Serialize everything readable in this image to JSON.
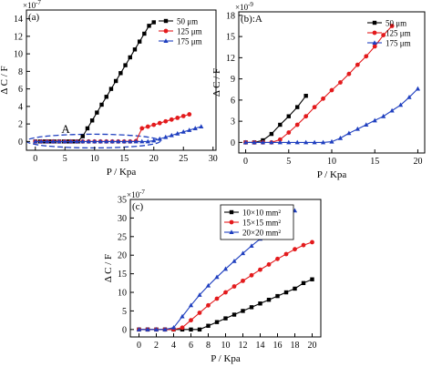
{
  "chart_data": [
    {
      "id": "a",
      "type": "line",
      "panel_label": "(a)",
      "exponent_label": "×10",
      "exponent_sup": "-7",
      "xlabel": "P / Kpa",
      "ylabel": "Δ C / F",
      "xlim": [
        -1.5,
        30.5
      ],
      "ylim": [
        -1,
        15
      ],
      "xticks": [
        0,
        5,
        10,
        15,
        20,
        25,
        30
      ],
      "yticks": [
        0,
        2,
        4,
        6,
        8,
        10,
        12,
        14
      ],
      "grid": false,
      "legend_position": "top-right",
      "annotation": "A",
      "series": [
        {
          "name": "50 μm",
          "color": "#000000",
          "marker": "square",
          "x": [
            0,
            0.8,
            1.6,
            2.4,
            3.2,
            4,
            4.8,
            5.6,
            6.4,
            7.2,
            8,
            8.8,
            9.6,
            10.4,
            11.2,
            12,
            12.8,
            13.6,
            14.4,
            15.2,
            16,
            16.8,
            17.6,
            18.4,
            19.2,
            20
          ],
          "y": [
            0,
            0,
            0,
            0,
            0,
            0,
            0,
            0,
            0,
            0,
            0.6,
            1.5,
            2.4,
            3.3,
            4.2,
            5.1,
            6,
            6.9,
            7.8,
            8.7,
            9.6,
            10.5,
            11.4,
            12.3,
            13.2,
            13.6
          ]
        },
        {
          "name": "125 μm",
          "color": "#e31a1c",
          "marker": "circle",
          "x": [
            0,
            1,
            2,
            3,
            4,
            5,
            6,
            7,
            8,
            9,
            10,
            11,
            12,
            13,
            14,
            15,
            16,
            17,
            18,
            19,
            20,
            21,
            22,
            23,
            24,
            25,
            26
          ],
          "y": [
            0,
            0,
            0,
            0,
            0,
            0,
            0,
            0,
            0,
            0,
            0,
            0,
            0,
            0,
            0,
            0,
            0,
            0.05,
            1.5,
            1.7,
            1.9,
            2.1,
            2.3,
            2.5,
            2.7,
            2.9,
            3.1
          ]
        },
        {
          "name": "175 μm",
          "color": "#1f3fbf",
          "marker": "triangle",
          "x": [
            0,
            1,
            2,
            3,
            4,
            5,
            6,
            7,
            8,
            9,
            10,
            11,
            12,
            13,
            14,
            15,
            16,
            17,
            18,
            19,
            20,
            21,
            22,
            23,
            24,
            25,
            26,
            27,
            28
          ],
          "y": [
            0,
            0,
            0,
            0,
            0,
            0,
            0,
            0,
            0,
            0,
            0,
            0,
            0,
            0,
            0,
            0,
            0,
            0,
            0,
            0,
            0.1,
            0.3,
            0.5,
            0.7,
            0.9,
            1.1,
            1.3,
            1.5,
            1.7
          ]
        }
      ]
    },
    {
      "id": "b",
      "type": "line",
      "panel_label": "(b)",
      "panel_suffix": "A",
      "exponent_label": "×10",
      "exponent_sup": "-9",
      "xlabel": "P / Kpa",
      "ylabel": "Δ C / F",
      "xlim": [
        -0.8,
        20.8
      ],
      "ylim": [
        -1.5,
        18.5
      ],
      "xticks": [
        0,
        5,
        10,
        15,
        20
      ],
      "yticks": [
        0,
        3,
        6,
        9,
        12,
        15,
        18
      ],
      "grid": false,
      "legend_position": "top-right",
      "series": [
        {
          "name": "50 μm",
          "color": "#000000",
          "marker": "square",
          "x": [
            0,
            1,
            2,
            3,
            4,
            5,
            6,
            7
          ],
          "y": [
            0,
            0,
            0.3,
            1.2,
            2.5,
            3.7,
            5,
            6.6
          ]
        },
        {
          "name": "125 μm",
          "color": "#e31a1c",
          "marker": "circle",
          "x": [
            0,
            1,
            2,
            3,
            4,
            5,
            6,
            7,
            8,
            9,
            10,
            11,
            12,
            13,
            14,
            15,
            16,
            17
          ],
          "y": [
            0,
            0,
            0,
            0,
            0.4,
            1.4,
            2.5,
            3.7,
            5,
            6.2,
            7.4,
            8.5,
            9.7,
            11,
            12.2,
            13.6,
            15.2,
            16.5
          ]
        },
        {
          "name": "175 μm",
          "color": "#1f3fbf",
          "marker": "triangle",
          "x": [
            0,
            1,
            2,
            3,
            4,
            5,
            6,
            7,
            8,
            9,
            10,
            11,
            12,
            13,
            14,
            15,
            16,
            17,
            18,
            19,
            20
          ],
          "y": [
            0,
            0,
            0,
            0,
            0,
            0,
            0,
            0,
            0,
            0,
            0.1,
            0.6,
            1.3,
            1.9,
            2.5,
            3.1,
            3.7,
            4.5,
            5.3,
            6.4,
            7.6
          ]
        }
      ]
    },
    {
      "id": "c",
      "type": "line",
      "panel_label": "(c)",
      "exponent_label": "×10",
      "exponent_sup": "-7",
      "xlabel": "P / Kpa",
      "ylabel": "Δ C / F",
      "xlim": [
        -1,
        21
      ],
      "ylim": [
        -2,
        35
      ],
      "xticks": [
        0,
        2,
        4,
        6,
        8,
        10,
        12,
        14,
        16,
        18,
        20
      ],
      "yticks": [
        0,
        5,
        10,
        15,
        20,
        25,
        30,
        35
      ],
      "grid": false,
      "legend_position": "top-right",
      "series": [
        {
          "name": "10×10 mm²",
          "color": "#000000",
          "marker": "square",
          "x": [
            0,
            1,
            2,
            3,
            4,
            5,
            6,
            7,
            8,
            9,
            10,
            11,
            12,
            13,
            14,
            15,
            16,
            17,
            18,
            19,
            20
          ],
          "y": [
            0,
            0,
            0,
            0,
            0,
            0,
            0,
            0,
            1,
            2,
            3,
            4,
            5,
            6,
            7,
            8,
            9,
            10,
            11,
            12.5,
            13.5
          ]
        },
        {
          "name": "15×15 mm²",
          "color": "#e31a1c",
          "marker": "circle",
          "x": [
            0,
            1,
            2,
            3,
            4,
            5,
            6,
            7,
            8,
            9,
            10,
            11,
            12,
            13,
            14,
            15,
            16,
            17,
            18,
            19,
            20
          ],
          "y": [
            0,
            0,
            0,
            0,
            0,
            0.5,
            2.5,
            4.5,
            6.5,
            8.3,
            10,
            11.6,
            13.1,
            14.6,
            16.1,
            17.5,
            19,
            20.3,
            21.6,
            22.7,
            23.5
          ]
        },
        {
          "name": "20×20 mm²",
          "color": "#1f3fbf",
          "marker": "triangle",
          "x": [
            0,
            1,
            2,
            3,
            4,
            5,
            6,
            7,
            8,
            9,
            10,
            11,
            12,
            13,
            14,
            15,
            16,
            17,
            18
          ],
          "y": [
            0,
            0,
            0,
            0,
            0.5,
            3.5,
            6.5,
            9.3,
            11.8,
            14.1,
            16.3,
            18.4,
            20.5,
            22.5,
            24.4,
            26.3,
            28.2,
            30,
            32
          ]
        }
      ]
    }
  ]
}
